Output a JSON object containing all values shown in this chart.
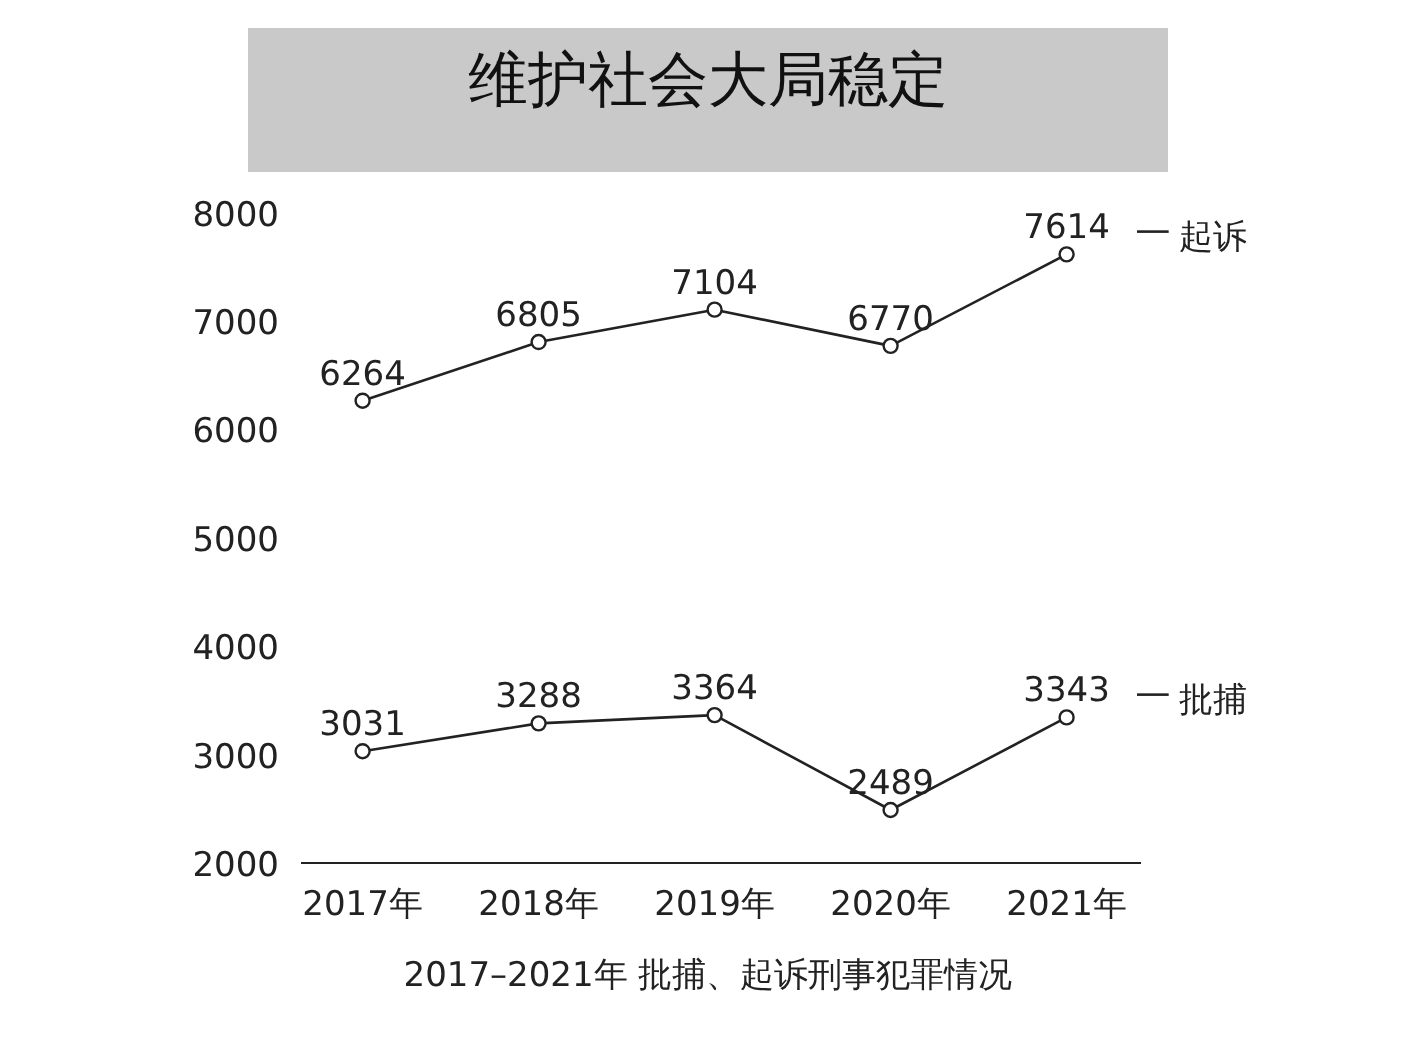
{
  "chart_data": {
    "type": "line",
    "title": "维护社会大局稳定",
    "categories": [
      "2017年",
      "2018年",
      "2019年",
      "2020年",
      "2021年"
    ],
    "series": [
      {
        "name": "起诉",
        "color": "#222222",
        "values": [
          6264,
          6805,
          7104,
          6770,
          7614
        ]
      },
      {
        "name": "批捕",
        "color": "#222222",
        "values": [
          3031,
          3288,
          3364,
          2489,
          3343
        ]
      }
    ],
    "ylim": [
      2000,
      8000
    ],
    "yticks": [
      2000,
      3000,
      4000,
      5000,
      6000,
      7000,
      8000
    ],
    "data_labels": true,
    "marker": "circle",
    "line_style": "solid",
    "grid": false,
    "legend": "right",
    "annotations": [
      "2017–2021年 批捕、起诉刑事犯罪情况"
    ]
  }
}
